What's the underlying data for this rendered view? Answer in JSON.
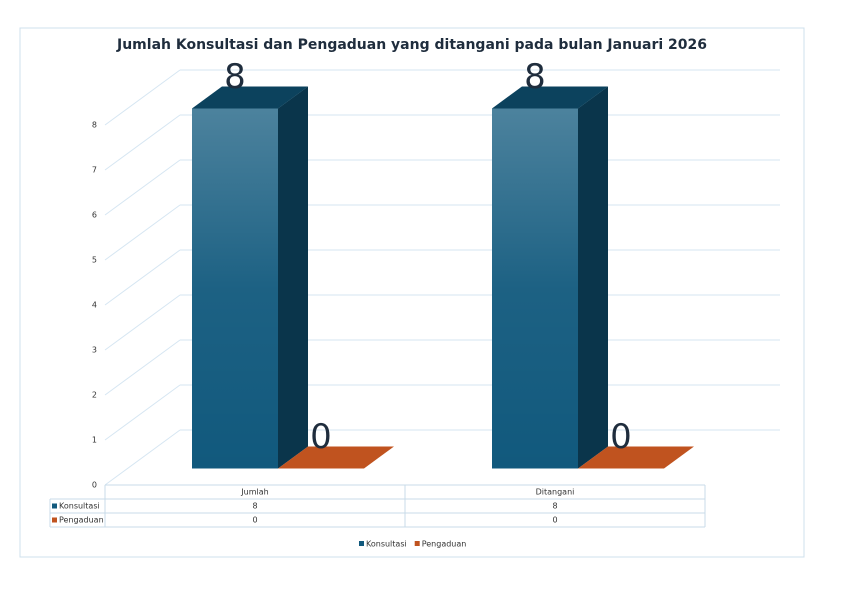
{
  "chart_data": {
    "type": "bar3d",
    "title": "Jumlah  Konsultasi dan Pengaduan yang ditangani pada bulan Januari 2026",
    "categories": [
      "Jumlah",
      "Ditangani"
    ],
    "series": [
      {
        "name": "Konsultasi",
        "color": "#11597d",
        "values": [
          8,
          8
        ]
      },
      {
        "name": "Pengaduan",
        "color": "#c0531f",
        "values": [
          0,
          0
        ]
      }
    ],
    "ylim": [
      0,
      8
    ],
    "yticks": [
      0,
      1,
      2,
      3,
      4,
      5,
      6,
      7,
      8
    ],
    "grid": true,
    "data_table": true,
    "legend": "bottom"
  }
}
